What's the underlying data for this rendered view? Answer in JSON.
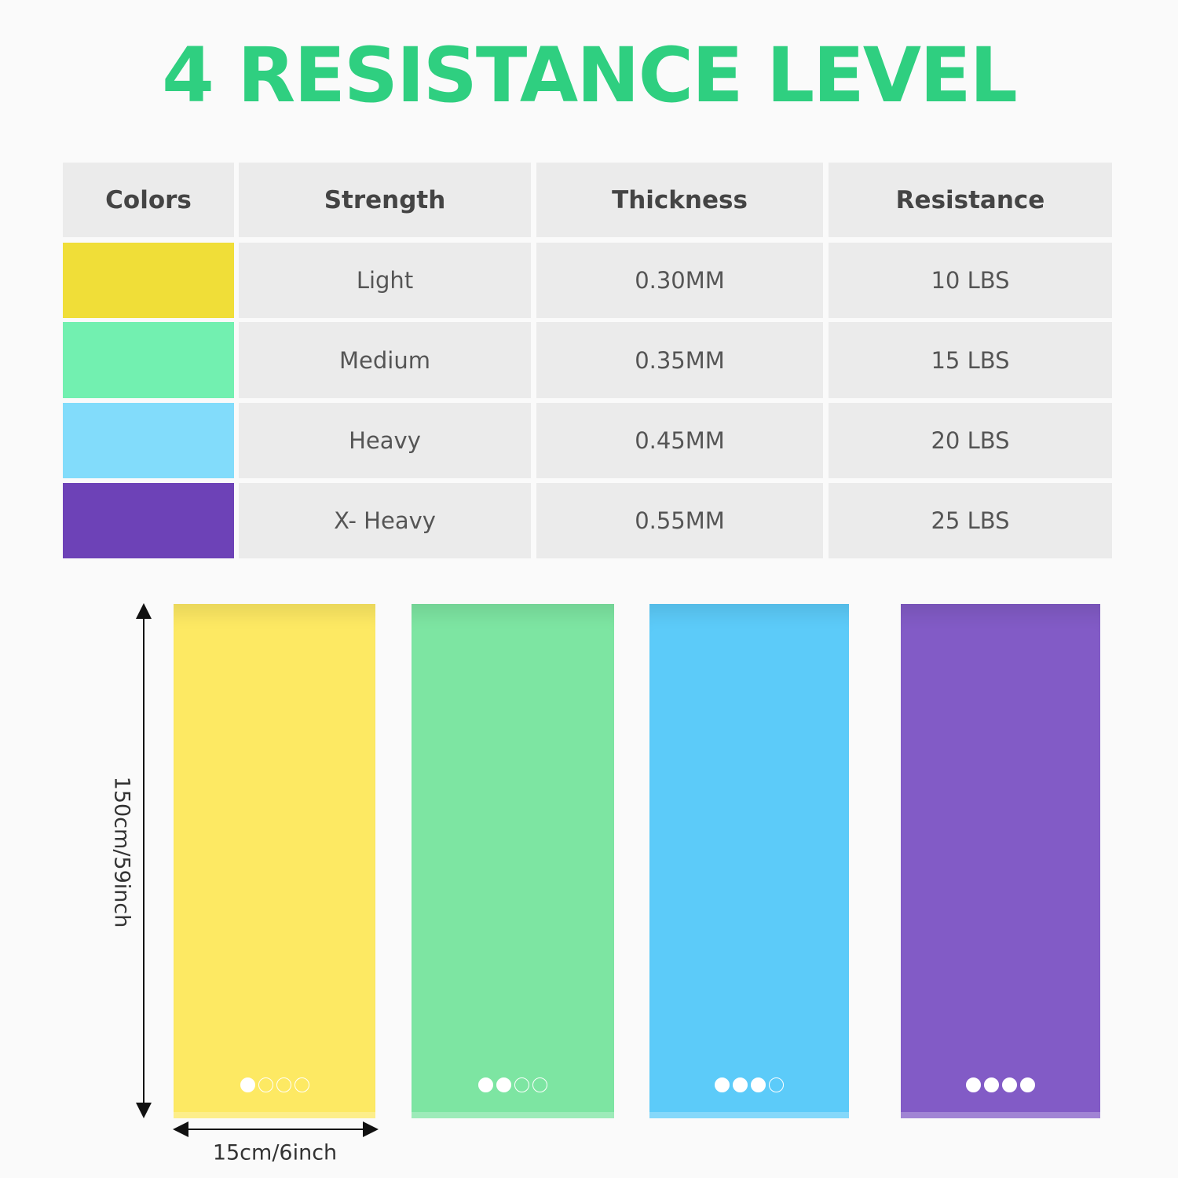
{
  "title": "4 RESISTANCE LEVEL",
  "table": {
    "headers": [
      "Colors",
      "Strength",
      "Thickness",
      "Resistance"
    ],
    "rows": [
      {
        "color": "#f0de38",
        "band_color": "#fde963",
        "strength": "Light",
        "thickness": "0.30MM",
        "resistance": "10 LBS"
      },
      {
        "color": "#72f0b0",
        "band_color": "#7de5a2",
        "strength": "Medium",
        "thickness": "0.35MM",
        "resistance": "15 LBS"
      },
      {
        "color": "#82dcfb",
        "band_color": "#5ccbf9",
        "strength": "Heavy",
        "thickness": "0.45MM",
        "resistance": "20 LBS"
      },
      {
        "color": "#6d42b7",
        "band_color": "#825bc6",
        "strength": "X- Heavy",
        "thickness": "0.55MM",
        "resistance": "25 LBS"
      }
    ]
  },
  "dimensions": {
    "length": "150cm/59inch",
    "width": "15cm/6inch"
  }
}
